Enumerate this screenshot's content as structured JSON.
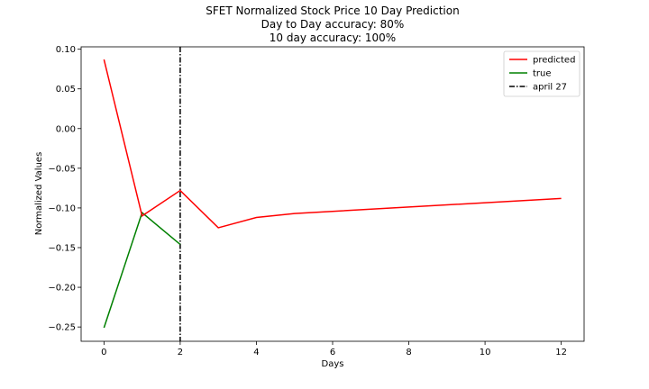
{
  "chart_data": {
    "type": "line",
    "title_lines": [
      "SFET Normalized Stock Price 10 Day Prediction",
      "Day to Day accuracy: 80%",
      "10 day accuracy: 100%"
    ],
    "xlabel": "Days",
    "ylabel": "Normalized Values",
    "xlim": [
      -0.6,
      12.6
    ],
    "ylim": [
      -0.268,
      0.103
    ],
    "xticks": [
      0,
      2,
      4,
      6,
      8,
      10,
      12
    ],
    "xtick_labels": [
      "0",
      "2",
      "4",
      "6",
      "8",
      "10",
      "12"
    ],
    "yticks": [
      0.1,
      0.05,
      0.0,
      -0.05,
      -0.1,
      -0.15,
      -0.2,
      -0.25
    ],
    "ytick_labels": [
      "0.10",
      "0.05",
      "0.00",
      "−0.05",
      "−0.10",
      "−0.15",
      "−0.20",
      "−0.25"
    ],
    "series": [
      {
        "name": "predicted",
        "color": "#ff0000",
        "x": [
          0,
          1,
          2,
          3,
          4,
          5,
          12
        ],
        "y": [
          0.087,
          -0.11,
          -0.078,
          -0.125,
          -0.112,
          -0.107,
          -0.088
        ]
      },
      {
        "name": "true",
        "color": "#008000",
        "x": [
          0,
          1,
          2
        ],
        "y": [
          -0.251,
          -0.106,
          -0.146
        ]
      }
    ],
    "vline": {
      "name": "april 27",
      "x": 2,
      "color": "#000000",
      "style": "dash-dot"
    },
    "legend_placement": "top-right",
    "grid": false
  }
}
